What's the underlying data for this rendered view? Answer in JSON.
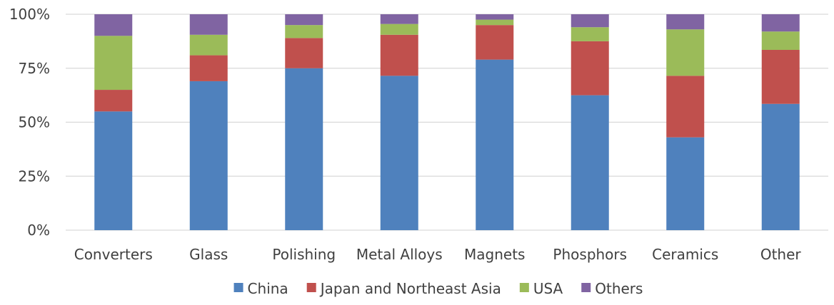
{
  "chart_data": {
    "type": "bar",
    "stacked": true,
    "percent": true,
    "categories": [
      "Converters",
      "Glass",
      "Polishing",
      "Metal Alloys",
      "Magnets",
      "Phosphors",
      "Ceramics",
      "Other"
    ],
    "series": [
      {
        "name": "China",
        "color": "#4F81BD",
        "values": [
          55,
          69,
          75,
          71.5,
          79,
          62.5,
          43,
          58.5
        ]
      },
      {
        "name": "Japan and Northeast Asia",
        "color": "#C0504D",
        "values": [
          10,
          12,
          14,
          19,
          16,
          25,
          28.5,
          25
        ]
      },
      {
        "name": "USA",
        "color": "#9BBB59",
        "values": [
          25,
          9.5,
          6,
          5,
          2.5,
          6.5,
          21.5,
          8.5
        ]
      },
      {
        "name": "Others",
        "color": "#8064A2",
        "values": [
          10,
          9.5,
          5,
          4.5,
          2.5,
          6,
          7,
          8
        ]
      }
    ],
    "yticks": [
      "0%",
      "25%",
      "50%",
      "75%",
      "100%"
    ],
    "ylim": [
      0,
      100
    ],
    "legend_position": "bottom",
    "grid": true
  }
}
